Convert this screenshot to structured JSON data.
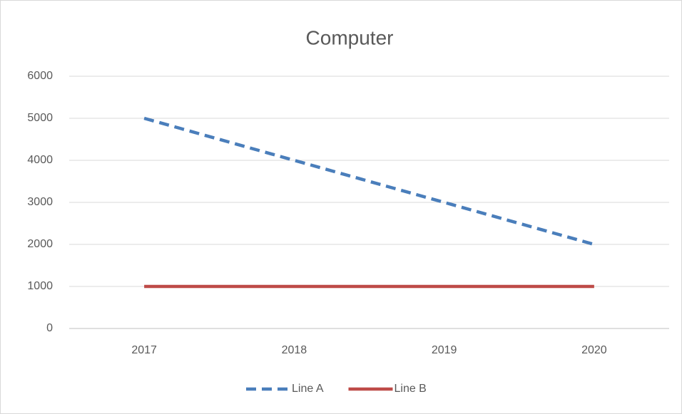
{
  "chart_data": {
    "type": "line",
    "title": "Computer",
    "categories": [
      "2017",
      "2018",
      "2019",
      "2020"
    ],
    "series": [
      {
        "name": "Line A",
        "color": "#4a7ebb",
        "style": "dashed",
        "values": [
          5000,
          4000,
          3000,
          2000
        ]
      },
      {
        "name": "Line B",
        "color": "#be4b48",
        "style": "solid",
        "values": [
          1000,
          1000,
          1000,
          1000
        ]
      }
    ],
    "ylim": [
      0,
      6000
    ],
    "yticks": [
      0,
      1000,
      2000,
      3000,
      4000,
      5000,
      6000
    ],
    "grid": true,
    "legend": "bottom"
  }
}
